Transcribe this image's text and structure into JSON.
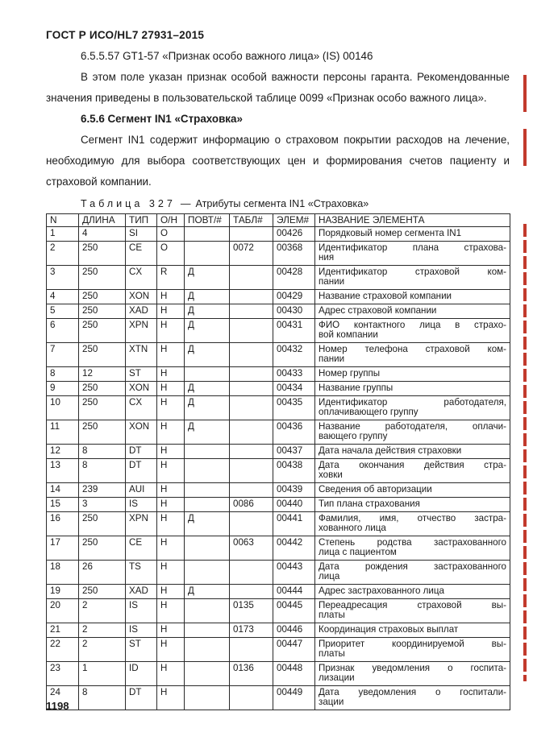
{
  "page": {
    "header": "ГОСТ Р ИСО/HL7 27931–2015",
    "footer_page_number": "1198"
  },
  "sections": {
    "clause_heading": "6.5.5.57 GT1-57 «Признак особо важного лица» (IS) 00146",
    "paragraph_1": "В этом поле указан признак особой важности персоны гаранта. Рекомендованные значения приведены в пользовательской таблице 0099 «Признак особо важного лица».",
    "segment_heading": "6.5.6 Сегмент IN1 «Страховка»",
    "paragraph_2": "Сегмент IN1 содержит информацию о страховом покрытии расходов на лечение, необходимую для выбора соответствующих цен и формирования счетов пациенту и страховой компании."
  },
  "table": {
    "caption_label": "Таблица 327",
    "caption_dash": "—",
    "caption_title": "Атрибуты сегмента IN1 «Страховка»",
    "columns": [
      "N",
      "ДЛИНА",
      "ТИП",
      "О/Н",
      "ПОВТ/#",
      "ТАБЛ#",
      "ЭЛЕМ#",
      "НАЗВАНИЕ ЭЛЕМЕНТА"
    ],
    "rows": [
      {
        "n": "1",
        "len": "4",
        "type": "SI",
        "opt": "O",
        "rep": "",
        "tbl": "",
        "elem": "00426",
        "name_lines": [
          "Порядковый номер сегмента IN1"
        ]
      },
      {
        "n": "2",
        "len": "250",
        "type": "CE",
        "opt": "O",
        "rep": "",
        "tbl": "0072",
        "elem": "00368",
        "name_lines": [
          "Идентификатор плана страхова-",
          "ния"
        ]
      },
      {
        "n": "3",
        "len": "250",
        "type": "CX",
        "opt": "R",
        "rep": "Д",
        "tbl": "",
        "elem": "00428",
        "name_lines": [
          "Идентификатор страховой ком-",
          "пании"
        ]
      },
      {
        "n": "4",
        "len": "250",
        "type": "XON",
        "opt": "Н",
        "rep": "Д",
        "tbl": "",
        "elem": "00429",
        "name_lines": [
          "Название страховой компании"
        ]
      },
      {
        "n": "5",
        "len": "250",
        "type": "XAD",
        "opt": "Н",
        "rep": "Д",
        "tbl": "",
        "elem": "00430",
        "name_lines": [
          "Адрес страховой компании"
        ]
      },
      {
        "n": "6",
        "len": "250",
        "type": "XPN",
        "opt": "Н",
        "rep": "Д",
        "tbl": "",
        "elem": "00431",
        "name_lines": [
          "ФИО контактного лица в страхо-",
          "вой компании"
        ]
      },
      {
        "n": "7",
        "len": "250",
        "type": "XTN",
        "opt": "Н",
        "rep": "Д",
        "tbl": "",
        "elem": "00432",
        "name_lines": [
          "Номер телефона страховой ком-",
          "пании"
        ]
      },
      {
        "n": "8",
        "len": "12",
        "type": "ST",
        "opt": "Н",
        "rep": "",
        "tbl": "",
        "elem": "00433",
        "name_lines": [
          "Номер группы"
        ]
      },
      {
        "n": "9",
        "len": "250",
        "type": "XON",
        "opt": "Н",
        "rep": "Д",
        "tbl": "",
        "elem": "00434",
        "name_lines": [
          "Название группы"
        ]
      },
      {
        "n": "10",
        "len": "250",
        "type": "CX",
        "opt": "Н",
        "rep": "Д",
        "tbl": "",
        "elem": "00435",
        "name_lines": [
          "Идентификатор работодателя,",
          "оплачивающего группу"
        ]
      },
      {
        "n": "11",
        "len": "250",
        "type": "XON",
        "opt": "Н",
        "rep": "Д",
        "tbl": "",
        "elem": "00436",
        "name_lines": [
          "Название работодателя, оплачи-",
          "вающего группу"
        ]
      },
      {
        "n": "12",
        "len": "8",
        "type": "DT",
        "opt": "Н",
        "rep": "",
        "tbl": "",
        "elem": "00437",
        "name_lines": [
          "Дата начала действия страховки"
        ]
      },
      {
        "n": "13",
        "len": "8",
        "type": "DT",
        "opt": "Н",
        "rep": "",
        "tbl": "",
        "elem": "00438",
        "name_lines": [
          "Дата окончания действия стра-",
          "ховки"
        ]
      },
      {
        "n": "14",
        "len": "239",
        "type": "AUI",
        "opt": "Н",
        "rep": "",
        "tbl": "",
        "elem": "00439",
        "name_lines": [
          "Сведения об авторизации"
        ]
      },
      {
        "n": "15",
        "len": "3",
        "type": "IS",
        "opt": "Н",
        "rep": "",
        "tbl": "0086",
        "elem": "00440",
        "name_lines": [
          "Тип плана страхования"
        ]
      },
      {
        "n": "16",
        "len": "250",
        "type": "XPN",
        "opt": "Н",
        "rep": "Д",
        "tbl": "",
        "elem": "00441",
        "name_lines": [
          "Фамилия, имя, отчество застра-",
          "хованного лица"
        ]
      },
      {
        "n": "17",
        "len": "250",
        "type": "CE",
        "opt": "Н",
        "rep": "",
        "tbl": "0063",
        "elem": "00442",
        "name_lines": [
          "Степень родства застрахованного",
          "лица с пациентом"
        ]
      },
      {
        "n": "18",
        "len": "26",
        "type": "TS",
        "opt": "Н",
        "rep": "",
        "tbl": "",
        "elem": "00443",
        "name_lines": [
          "Дата рождения застрахованного",
          "лица"
        ]
      },
      {
        "n": "19",
        "len": "250",
        "type": "XAD",
        "opt": "Н",
        "rep": "Д",
        "tbl": "",
        "elem": "00444",
        "name_lines": [
          "Адрес застрахованного лица"
        ]
      },
      {
        "n": "20",
        "len": "2",
        "type": "IS",
        "opt": "Н",
        "rep": "",
        "tbl": "0135",
        "elem": "00445",
        "name_lines": [
          "Переадресация страховой вы-",
          "платы"
        ]
      },
      {
        "n": "21",
        "len": "2",
        "type": "IS",
        "opt": "Н",
        "rep": "",
        "tbl": "0173",
        "elem": "00446",
        "name_lines": [
          "Координация страховых выплат"
        ]
      },
      {
        "n": "22",
        "len": "2",
        "type": "ST",
        "opt": "Н",
        "rep": "",
        "tbl": "",
        "elem": "00447",
        "name_lines": [
          "Приоритет координируемой вы-",
          "платы"
        ]
      },
      {
        "n": "23",
        "len": "1",
        "type": "ID",
        "opt": "Н",
        "rep": "",
        "tbl": "0136",
        "elem": "00448",
        "name_lines": [
          "Признак уведомления о госпита-",
          "лизации"
        ]
      },
      {
        "n": "24",
        "len": "8",
        "type": "DT",
        "opt": "Н",
        "rep": "",
        "tbl": "",
        "elem": "00449",
        "name_lines": [
          "Дата уведомления о госпитали-",
          "зации"
        ]
      }
    ]
  },
  "accent_colors": {
    "revision_bar_red": "#c23a2d",
    "text": "#1b1b1b",
    "table_border": "#2a2a2a"
  }
}
